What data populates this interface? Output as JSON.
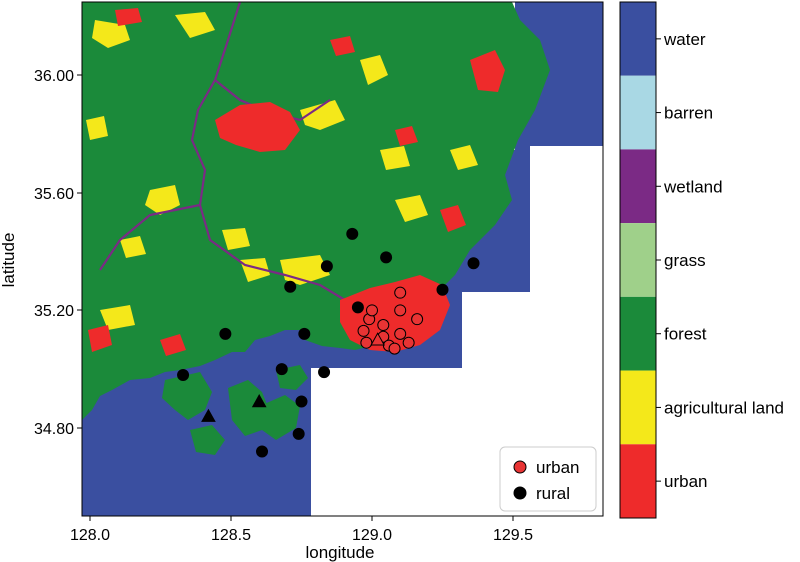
{
  "map": {
    "x_axis": {
      "label": "longitude",
      "ticks": [
        "128.0",
        "128.5",
        "129.0",
        "129.5"
      ]
    },
    "y_axis": {
      "label": "latitude",
      "ticks": [
        "36.00",
        "35.60",
        "35.20",
        "34.80"
      ]
    },
    "colors": {
      "water": "#3a4fa0",
      "barren": "#a9d8e4",
      "wetland": "#7b2a85",
      "grass": "#9fd08a",
      "forest": "#1b8a3a",
      "agricultural": "#f4e81a",
      "urban": "#ee2b2b",
      "urban_marker": "#e83434",
      "rural_marker": "#000000"
    },
    "colorbar": [
      {
        "key": "water",
        "label": "water",
        "color": "#3a4fa0"
      },
      {
        "key": "barren",
        "label": "barren",
        "color": "#a9d8e4"
      },
      {
        "key": "wetland",
        "label": "wetland",
        "color": "#7b2a85"
      },
      {
        "key": "grass",
        "label": "grass",
        "color": "#9fd08a"
      },
      {
        "key": "forest",
        "label": "forest",
        "color": "#1b8a3a"
      },
      {
        "key": "agricultural",
        "label": "agricultural land",
        "color": "#f4e81a"
      },
      {
        "key": "urban",
        "label": "urban",
        "color": "#ee2b2b"
      }
    ],
    "legend": [
      {
        "label": "urban",
        "color": "#e83434"
      },
      {
        "label": "rural",
        "color": "#000000"
      }
    ],
    "stations": {
      "urban": [
        [
          128.97,
          35.13
        ],
        [
          128.98,
          35.09
        ],
        [
          128.99,
          35.17
        ],
        [
          129.0,
          35.2
        ],
        [
          129.04,
          35.15
        ],
        [
          129.04,
          35.11
        ],
        [
          129.06,
          35.08
        ],
        [
          129.08,
          35.07
        ],
        [
          129.1,
          35.12
        ],
        [
          129.1,
          35.2
        ],
        [
          129.1,
          35.26
        ],
        [
          129.13,
          35.09
        ],
        [
          129.16,
          35.17
        ]
      ],
      "urban_triangles": [
        [
          129.02,
          35.1
        ]
      ],
      "rural": [
        [
          128.33,
          34.98
        ],
        [
          128.48,
          35.12
        ],
        [
          128.61,
          34.72
        ],
        [
          128.68,
          35.0
        ],
        [
          128.71,
          35.28
        ],
        [
          128.74,
          34.78
        ],
        [
          128.75,
          34.89
        ],
        [
          128.76,
          35.12
        ],
        [
          128.83,
          34.99
        ],
        [
          128.84,
          35.35
        ],
        [
          128.93,
          35.46
        ],
        [
          128.95,
          35.21
        ],
        [
          129.05,
          35.38
        ],
        [
          129.25,
          35.27
        ],
        [
          129.36,
          35.36
        ]
      ],
      "rural_triangles": [
        [
          128.42,
          34.84
        ],
        [
          128.6,
          34.89
        ]
      ]
    }
  }
}
